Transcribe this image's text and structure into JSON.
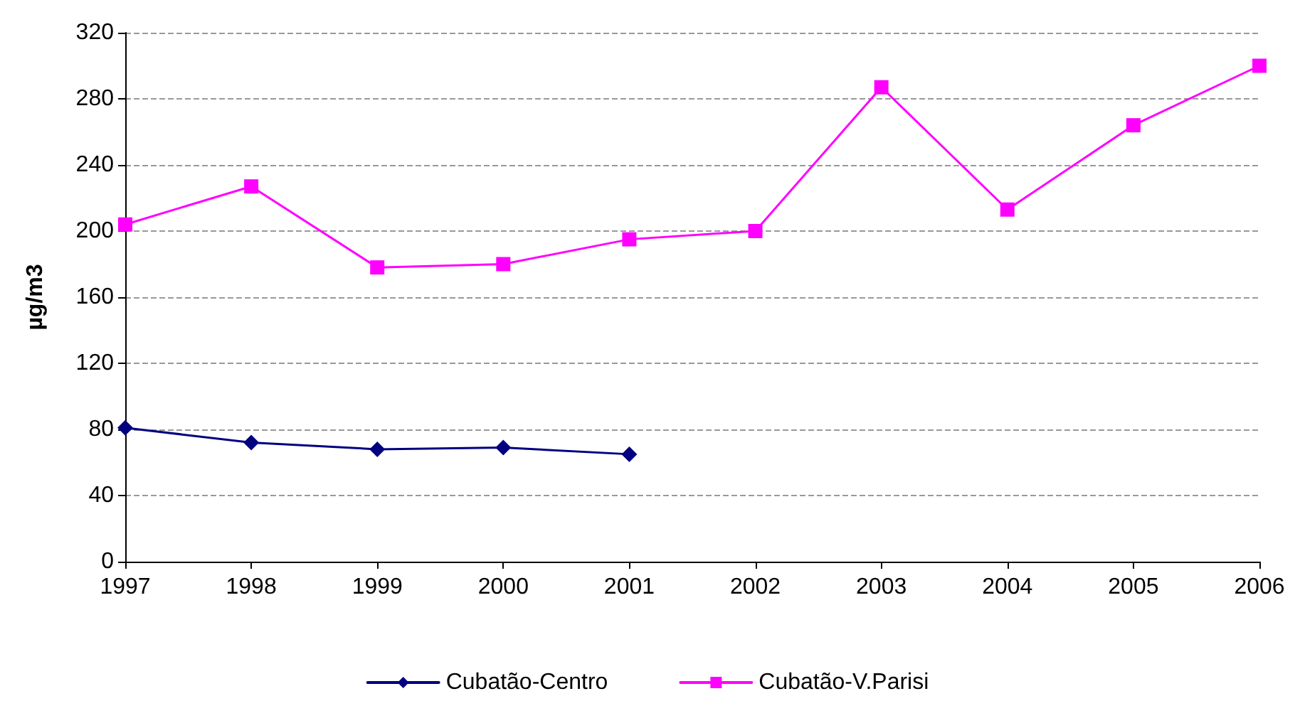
{
  "chart_data": {
    "type": "line",
    "ylabel": "µg/m3",
    "categories": [
      "1997",
      "1998",
      "1999",
      "2000",
      "2001",
      "2002",
      "2003",
      "2004",
      "2005",
      "2006"
    ],
    "series": [
      {
        "name": "Cubatão-Centro",
        "color": "#000080",
        "marker": "diamond",
        "values": [
          81,
          72,
          68,
          69,
          65,
          null,
          null,
          null,
          null,
          null
        ]
      },
      {
        "name": "Cubatão-V.Parisi",
        "color": "#ff00ff",
        "marker": "square",
        "values": [
          204,
          227,
          178,
          180,
          195,
          200,
          287,
          213,
          264,
          300
        ]
      }
    ],
    "ylim": [
      0,
      320
    ],
    "yticks": [
      0,
      40,
      80,
      120,
      160,
      200,
      240,
      280,
      320
    ],
    "grid": "y",
    "legend": "bottom"
  }
}
